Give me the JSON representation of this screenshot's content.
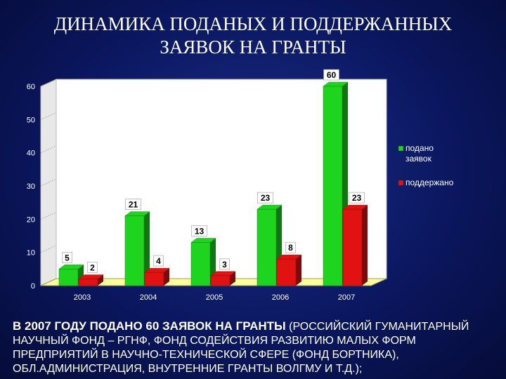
{
  "slide": {
    "title_line1": "ДИНАМИКА ПОДАНЫХ И ПОДДЕРЖАННЫХ",
    "title_line2": "ЗАЯВОК НА ГРАНТЫ",
    "footer_lead": "В 2007 ГОДУ ПОДАНО 60 ЗАЯВОК НА ГРАНТЫ",
    "footer_rest": " (РОССИЙСКИЙ ГУМАНИТАРНЫЙ НАУЧНЫЙ ФОНД – РГНФ, ФОНД СОДЕЙСТВИЯ РАЗВИТИЮ МАЛЫХ ФОРМ ПРЕДПРИЯТИЙ В НАУЧНО-ТЕХНИЧЕСКОЙ СФЕРЕ (ФОНД БОРТНИКА), ОБЛ.АДМИНИСТРАЦИЯ, ВНУТРЕННИЕ ГРАНТЫ ВОЛГМУ И Т.Д.);"
  },
  "colors": {
    "green": "#1fd41f",
    "red": "#e01212",
    "floor": "#ffff99",
    "wall": "#ffffff"
  },
  "chart_data": {
    "type": "bar",
    "categories": [
      "2003",
      "2004",
      "2005",
      "2006",
      "2007"
    ],
    "series": [
      {
        "name": "подано заявок",
        "values": [
          5,
          21,
          13,
          23,
          60
        ]
      },
      {
        "name": "поддержано",
        "values": [
          2,
          4,
          3,
          8,
          23
        ]
      }
    ],
    "yticks": [
      0,
      10,
      20,
      30,
      40,
      50,
      60
    ],
    "ylim": [
      0,
      60
    ],
    "legend": "right",
    "data_labels": true,
    "three_d": true
  }
}
